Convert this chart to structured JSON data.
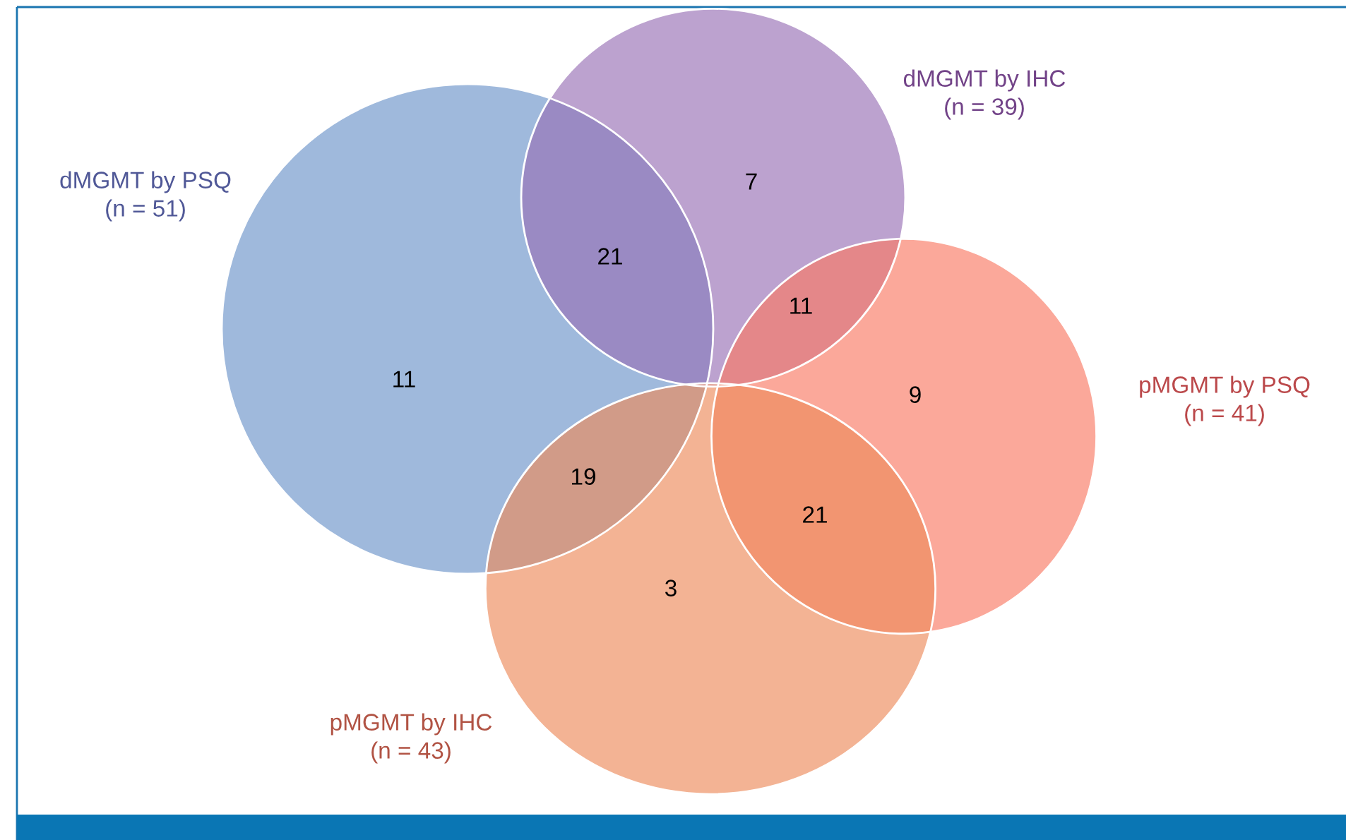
{
  "chart_data": {
    "type": "other",
    "categories": [
      "dMGMT by PSQ",
      "dMGMT by IHC",
      "pMGMT by PSQ",
      "pMGMT by IHC"
    ],
    "values": [
      51,
      39,
      41,
      43
    ],
    "value_labels": [
      "(n = 51)",
      "(n = 39)",
      "(n = 41)",
      "(n = 43)"
    ],
    "colors": [
      "#6b93c9",
      "#9870b6",
      "#f97a64",
      "#ec8b5b"
    ],
    "annotations": [
      "11",
      "21",
      "7",
      "11",
      "9",
      "21",
      "3",
      "19"
    ]
  }
}
